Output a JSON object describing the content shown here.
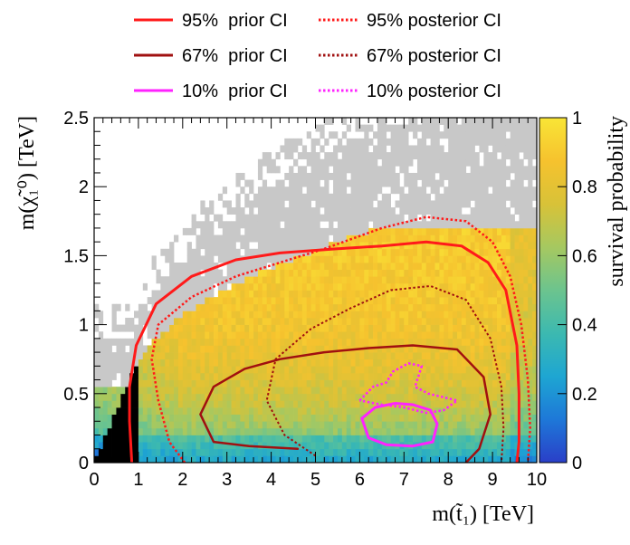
{
  "chart_data": {
    "type": "heatmap",
    "title": "",
    "xlabel": "m(t̃₁) [TeV]",
    "ylabel": "m(χ̃₁⁰) [TeV]",
    "xlim": [
      0,
      10
    ],
    "ylim": [
      0,
      2.5
    ],
    "x_ticks": [
      "0",
      "1",
      "2",
      "3",
      "4",
      "5",
      "6",
      "7",
      "8",
      "9",
      "10"
    ],
    "y_ticks": [
      "0",
      "0.5",
      "1",
      "1.5",
      "2",
      "2.5"
    ],
    "colorbar": {
      "label": "survival probability",
      "range": [
        0,
        1
      ],
      "ticks": [
        "0",
        "0.2",
        "0.4",
        "0.6",
        "0.8",
        "1"
      ],
      "palette": [
        "#2a3fc8",
        "#1e78d8",
        "#1ea6d2",
        "#3cb9b0",
        "#6cc48e",
        "#a6c860",
        "#d8c238",
        "#f6c22e",
        "#f9e536"
      ]
    },
    "empty_bin_color": "#c8c8c8",
    "excluded_color": "#000000",
    "legend": {
      "placement": "top",
      "entries": [
        {
          "label": "95%  prior CI",
          "color": "#ff1a1a",
          "style": "solid"
        },
        {
          "label": "95% posterior CI",
          "color": "#ff1a1a",
          "style": "dotted"
        },
        {
          "label": "67%  prior CI",
          "color": "#a01010",
          "style": "solid"
        },
        {
          "label": "67% posterior CI",
          "color": "#a01010",
          "style": "dotted"
        },
        {
          "label": "10%  prior CI",
          "color": "#ff22ff",
          "style": "solid"
        },
        {
          "label": "10% posterior CI",
          "color": "#ff22ff",
          "style": "dotted"
        }
      ]
    },
    "contours": [
      {
        "name": "95%  prior CI",
        "color": "#ff1a1a",
        "style": "solid",
        "width": 3,
        "points": [
          [
            0.85,
            0
          ],
          [
            0.8,
            0.3
          ],
          [
            0.8,
            0.55
          ],
          [
            0.95,
            0.85
          ],
          [
            1.4,
            1.15
          ],
          [
            2.2,
            1.35
          ],
          [
            3.2,
            1.47
          ],
          [
            4.2,
            1.52
          ],
          [
            5.5,
            1.55
          ],
          [
            6.5,
            1.57
          ],
          [
            7.5,
            1.6
          ],
          [
            8.3,
            1.57
          ],
          [
            8.9,
            1.45
          ],
          [
            9.3,
            1.25
          ],
          [
            9.55,
            0.85
          ],
          [
            9.6,
            0.5
          ],
          [
            9.6,
            0.15
          ],
          [
            9.55,
            0
          ]
        ]
      },
      {
        "name": "95% posterior CI",
        "color": "#ff1a1a",
        "style": "dotted",
        "width": 2.5,
        "points": [
          [
            2.05,
            0
          ],
          [
            1.7,
            0.15
          ],
          [
            1.45,
            0.45
          ],
          [
            1.3,
            0.75
          ],
          [
            1.45,
            1.0
          ],
          [
            2.2,
            1.2
          ],
          [
            3.2,
            1.35
          ],
          [
            4.2,
            1.45
          ],
          [
            5.2,
            1.55
          ],
          [
            6.5,
            1.7
          ],
          [
            7.5,
            1.78
          ],
          [
            8.4,
            1.75
          ],
          [
            9.0,
            1.6
          ],
          [
            9.4,
            1.35
          ],
          [
            9.65,
            1.0
          ],
          [
            9.8,
            0.6
          ],
          [
            9.85,
            0.25
          ],
          [
            9.8,
            0
          ]
        ]
      },
      {
        "name": "67%  prior CI",
        "color": "#a01010",
        "style": "solid",
        "width": 2.5,
        "points": [
          [
            4.6,
            0.1
          ],
          [
            3.5,
            0.12
          ],
          [
            2.7,
            0.15
          ],
          [
            2.4,
            0.35
          ],
          [
            2.7,
            0.55
          ],
          [
            3.4,
            0.68
          ],
          [
            4.2,
            0.75
          ],
          [
            5.2,
            0.8
          ],
          [
            6.2,
            0.83
          ],
          [
            7.2,
            0.85
          ],
          [
            8.2,
            0.82
          ],
          [
            8.8,
            0.62
          ],
          [
            8.95,
            0.35
          ],
          [
            8.7,
            0.1
          ],
          [
            8.4,
            0
          ]
        ]
      },
      {
        "name": "67% posterior CI",
        "color": "#a01010",
        "style": "dotted",
        "width": 2,
        "points": [
          [
            5.0,
            0.05
          ],
          [
            4.3,
            0.2
          ],
          [
            3.9,
            0.45
          ],
          [
            4.1,
            0.75
          ],
          [
            4.9,
            0.97
          ],
          [
            5.8,
            1.12
          ],
          [
            6.7,
            1.25
          ],
          [
            7.6,
            1.28
          ],
          [
            8.4,
            1.18
          ],
          [
            8.95,
            0.9
          ],
          [
            9.2,
            0.55
          ],
          [
            9.25,
            0.25
          ],
          [
            9.2,
            0
          ]
        ]
      },
      {
        "name": "10%  prior CI",
        "color": "#ff22ff",
        "style": "solid",
        "width": 3,
        "points": [
          [
            6.05,
            0.32
          ],
          [
            6.35,
            0.4
          ],
          [
            6.8,
            0.43
          ],
          [
            7.2,
            0.42
          ],
          [
            7.6,
            0.38
          ],
          [
            7.75,
            0.28
          ],
          [
            7.65,
            0.15
          ],
          [
            7.2,
            0.12
          ],
          [
            6.6,
            0.13
          ],
          [
            6.2,
            0.18
          ],
          [
            6.05,
            0.32
          ]
        ]
      },
      {
        "name": "10% posterior CI",
        "color": "#ff22ff",
        "style": "dotted",
        "width": 2.5,
        "points": [
          [
            6.0,
            0.45
          ],
          [
            6.3,
            0.55
          ],
          [
            6.6,
            0.58
          ],
          [
            6.75,
            0.66
          ],
          [
            7.1,
            0.72
          ],
          [
            7.4,
            0.7
          ],
          [
            7.25,
            0.55
          ],
          [
            7.55,
            0.5
          ],
          [
            8.2,
            0.45
          ],
          [
            7.9,
            0.38
          ],
          [
            7.5,
            0.36
          ],
          [
            7.0,
            0.4
          ],
          [
            6.5,
            0.42
          ],
          [
            6.0,
            0.45
          ]
        ]
      }
    ],
    "grid": false
  }
}
